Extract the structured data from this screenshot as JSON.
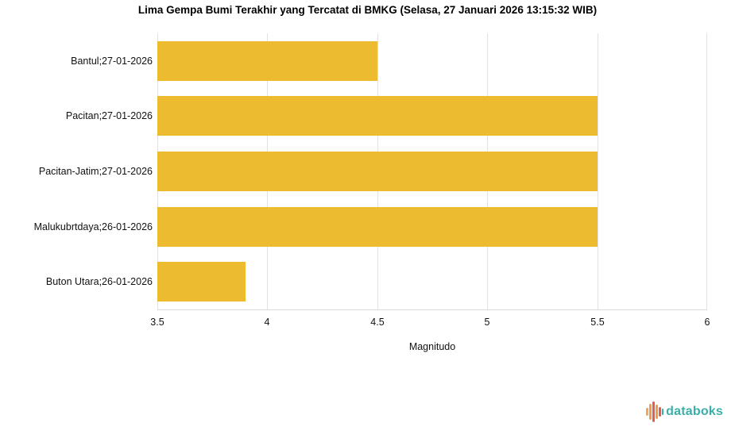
{
  "chart_data": {
    "type": "bar",
    "orientation": "horizontal",
    "title": "Lima Gempa Bumi Terakhir yang Tercatat di BMKG (Selasa, 27 Januari 2026 13:15:32 WIB)",
    "categories": [
      "Bantul;27-01-2026",
      "Pacitan;27-01-2026",
      "Pacitan-Jatim;27-01-2026",
      "Malukubrtdaya;26-01-2026",
      "Buton Utara;26-01-2026"
    ],
    "values": [
      4.5,
      5.5,
      5.5,
      5.5,
      3.9
    ],
    "xlabel": "Magnitudo",
    "ylabel": "",
    "xlim": [
      3.5,
      6
    ],
    "xticks": [
      3.5,
      4,
      4.5,
      5,
      5.5,
      6
    ],
    "grid": true,
    "legend": "none",
    "bar_color": "#ecbb2f",
    "gridline_color": "#e2e2e2",
    "axis_line_color": "#d9d9d9",
    "text_color": "#111111"
  },
  "footer": {
    "logo_text": "databoks",
    "logo_text_color": "#3aafa9",
    "logo_bars": [
      {
        "height": 10,
        "width": 3,
        "color": "#f2a65e"
      },
      {
        "height": 20,
        "width": 3,
        "color": "#f19b4b"
      },
      {
        "height": 26,
        "width": 3,
        "color": "#e05e4e"
      },
      {
        "height": 18,
        "width": 3,
        "color": "#f19b4b"
      },
      {
        "height": 12,
        "width": 3,
        "color": "#e05e4e"
      },
      {
        "height": 8,
        "width": 2,
        "color": "#3aafa9"
      }
    ]
  }
}
